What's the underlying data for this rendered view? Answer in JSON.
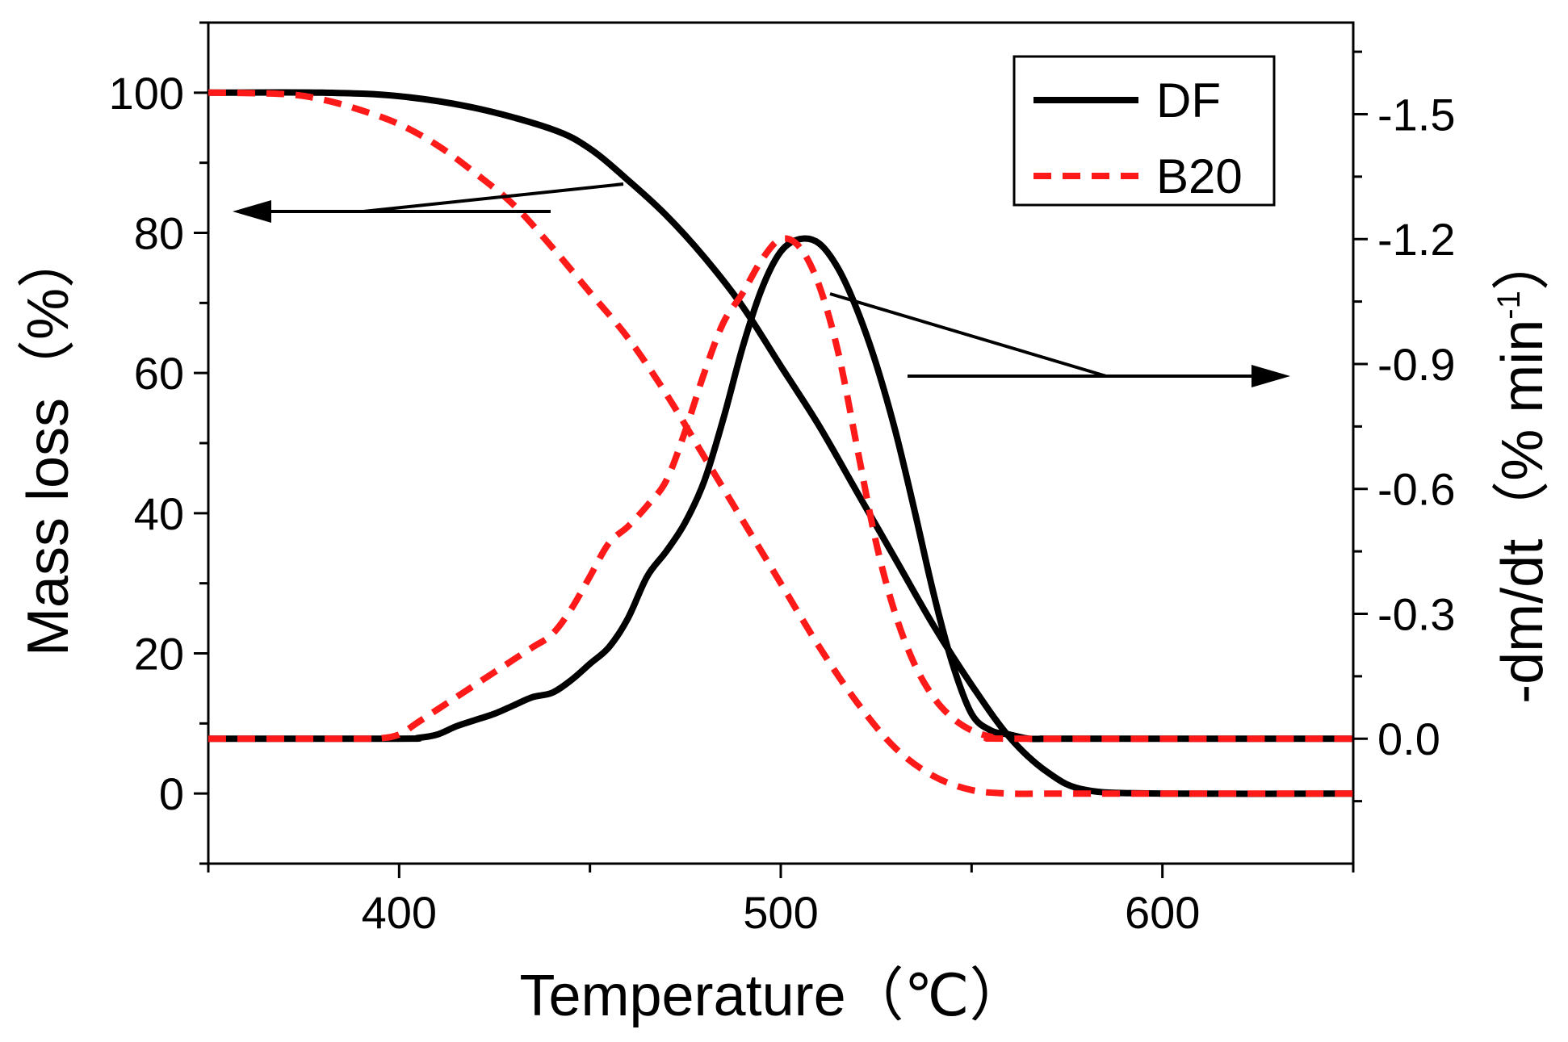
{
  "chart_data": {
    "type": "line",
    "title": "",
    "xlabel": "Temperature",
    "xlabel_unit": "（℃）",
    "ylabel_left": "Mass loss",
    "ylabel_left_unit": "（%）",
    "ylabel_right": "-dm/dt",
    "ylabel_right_unit": "（% min",
    "ylabel_right_sup": "-1",
    "ylabel_right_close": "）",
    "xlim": [
      350,
      650
    ],
    "ylim_left": [
      -10,
      110
    ],
    "ylim_right": [
      0.3,
      -1.72
    ],
    "x_ticks": [
      "400",
      "500",
      "600"
    ],
    "x_tick_values": [
      400,
      500,
      600
    ],
    "y_left_ticks": [
      "0",
      "20",
      "40",
      "60",
      "80",
      "100"
    ],
    "y_left_tick_values": [
      0,
      20,
      40,
      60,
      80,
      100
    ],
    "y_right_ticks": [
      "0.0",
      "-0.3",
      "-0.6",
      "-0.9",
      "-1.2",
      "-1.5"
    ],
    "y_right_tick_values": [
      0.0,
      -0.3,
      -0.6,
      -0.9,
      -1.2,
      -1.5
    ],
    "legend": {
      "position": "top-right",
      "entries": [
        {
          "label": "DF",
          "color": "#000000",
          "style": "solid"
        },
        {
          "label": "B20",
          "color": "#ff1a1a",
          "style": "dashed"
        }
      ]
    },
    "series": [
      {
        "name": "DF mass loss",
        "axis": "left",
        "color": "#000000",
        "style": "solid",
        "x": [
          350,
          380,
          400,
          420,
          440,
          450,
          460,
          470,
          480,
          490,
          500,
          510,
          520,
          530,
          540,
          550,
          560,
          570,
          580,
          600,
          650
        ],
        "values": [
          100,
          100,
          99.5,
          97.8,
          94.8,
          92,
          87.5,
          82.5,
          76.5,
          69.5,
          61,
          52.5,
          43,
          33.5,
          24,
          15.5,
          8,
          3,
          0.5,
          0,
          0
        ]
      },
      {
        "name": "B20 mass loss",
        "axis": "left",
        "color": "#ff1a1a",
        "style": "dashed",
        "x": [
          350,
          370,
          380,
          390,
          400,
          410,
          420,
          430,
          440,
          450,
          460,
          470,
          480,
          490,
          500,
          510,
          520,
          530,
          540,
          550,
          560,
          570,
          580,
          650
        ],
        "values": [
          100,
          99.8,
          99,
          97.5,
          95.5,
          92.5,
          88.5,
          84,
          78,
          71.5,
          65,
          57,
          48,
          39,
          30,
          21,
          13,
          6.5,
          2.5,
          0.5,
          0,
          0,
          0,
          0
        ]
      },
      {
        "name": "DF -dm/dt",
        "axis": "right",
        "color": "#000000",
        "style": "solid",
        "x": [
          350,
          400,
          405,
          410,
          415,
          420,
          425,
          430,
          435,
          440,
          445,
          450,
          455,
          460,
          465,
          470,
          475,
          480,
          485,
          490,
          495,
          500,
          505,
          510,
          515,
          520,
          525,
          530,
          535,
          540,
          545,
          550,
          555,
          560,
          565,
          570,
          575,
          650
        ],
        "values": [
          0,
          0,
          -0.002,
          -0.01,
          -0.03,
          -0.045,
          -0.06,
          -0.08,
          -0.1,
          -0.11,
          -0.14,
          -0.18,
          -0.22,
          -0.29,
          -0.39,
          -0.45,
          -0.52,
          -0.62,
          -0.77,
          -0.94,
          -1.08,
          -1.17,
          -1.2,
          -1.19,
          -1.13,
          -1.03,
          -0.9,
          -0.74,
          -0.55,
          -0.35,
          -0.18,
          -0.06,
          -0.02,
          -0.01,
          0,
          0,
          0,
          0
        ]
      },
      {
        "name": "B20 -dm/dt",
        "axis": "right",
        "color": "#ff1a1a",
        "style": "dashed",
        "x": [
          350,
          390,
          395,
          400,
          405,
          410,
          415,
          420,
          425,
          430,
          435,
          440,
          445,
          450,
          455,
          460,
          465,
          470,
          475,
          480,
          485,
          490,
          495,
          500,
          505,
          510,
          515,
          520,
          525,
          530,
          535,
          540,
          545,
          550,
          555,
          560,
          650
        ],
        "values": [
          0,
          0,
          -0.001,
          -0.01,
          -0.04,
          -0.07,
          -0.1,
          -0.13,
          -0.16,
          -0.19,
          -0.22,
          -0.25,
          -0.31,
          -0.39,
          -0.47,
          -0.51,
          -0.56,
          -0.62,
          -0.74,
          -0.88,
          -1.0,
          -1.07,
          -1.15,
          -1.2,
          -1.18,
          -1.09,
          -0.93,
          -0.7,
          -0.47,
          -0.3,
          -0.18,
          -0.1,
          -0.05,
          -0.02,
          -0.005,
          0,
          0
        ]
      }
    ],
    "annotations": [
      {
        "type": "arrow",
        "direction": "left",
        "meaning": "mass loss curves read on left axis"
      },
      {
        "type": "arrow",
        "direction": "right",
        "meaning": "-dm/dt curves read on right axis"
      }
    ]
  }
}
